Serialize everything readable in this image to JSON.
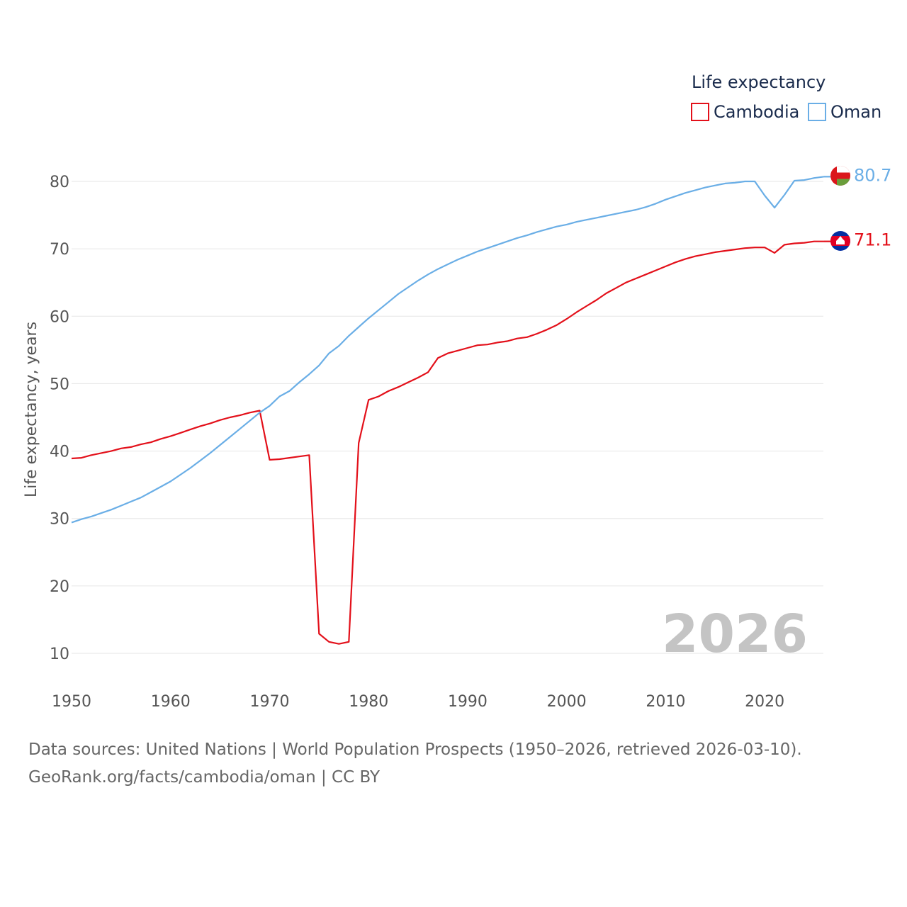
{
  "chart_data": {
    "type": "line",
    "legend_title": "Life expectancy",
    "ylabel": "Life expectancy, years",
    "xlabel": "",
    "xlim": [
      1950,
      2026
    ],
    "ylim": [
      10,
      85
    ],
    "yticks": [
      10,
      20,
      30,
      40,
      50,
      60,
      70,
      80
    ],
    "xticks": [
      1950,
      1960,
      1970,
      1980,
      1990,
      2000,
      2010,
      2020
    ],
    "year_label": "2026",
    "x_start": 1950,
    "series": [
      {
        "name": "Cambodia",
        "color": "#e3101a",
        "end_label": "71.1",
        "values": [
          38.9,
          39.0,
          39.4,
          39.7,
          40.0,
          40.4,
          40.6,
          41.0,
          41.3,
          41.8,
          42.2,
          42.7,
          43.2,
          43.7,
          44.1,
          44.6,
          45.0,
          45.3,
          45.7,
          46.0,
          38.7,
          38.8,
          39.0,
          39.2,
          39.4,
          12.9,
          11.7,
          11.4,
          11.7,
          41.2,
          47.6,
          48.1,
          48.9,
          49.5,
          50.2,
          50.9,
          51.7,
          53.8,
          54.5,
          54.9,
          55.3,
          55.7,
          55.8,
          56.1,
          56.3,
          56.7,
          56.9,
          57.4,
          58.0,
          58.7,
          59.6,
          60.6,
          61.5,
          62.4,
          63.4,
          64.2,
          65.0,
          65.6,
          66.2,
          66.8,
          67.4,
          68.0,
          68.5,
          68.9,
          69.2,
          69.5,
          69.7,
          69.9,
          70.1,
          70.2,
          70.2,
          69.4,
          70.6,
          70.8,
          70.9,
          71.1,
          71.1
        ]
      },
      {
        "name": "Oman",
        "color": "#6aaee6",
        "end_label": "80.7",
        "values": [
          29.4,
          29.9,
          30.3,
          30.8,
          31.3,
          31.9,
          32.5,
          33.1,
          33.9,
          34.7,
          35.5,
          36.5,
          37.5,
          38.6,
          39.7,
          40.9,
          42.1,
          43.3,
          44.5,
          45.7,
          46.7,
          48.1,
          48.9,
          50.2,
          51.4,
          52.7,
          54.5,
          55.6,
          57.1,
          58.4,
          59.7,
          60.9,
          62.1,
          63.3,
          64.3,
          65.3,
          66.2,
          67.0,
          67.7,
          68.4,
          69.0,
          69.6,
          70.1,
          70.6,
          71.1,
          71.6,
          72.0,
          72.5,
          72.9,
          73.3,
          73.6,
          74.0,
          74.3,
          74.6,
          74.9,
          75.2,
          75.5,
          75.8,
          76.2,
          76.7,
          77.3,
          77.8,
          78.3,
          78.7,
          79.1,
          79.4,
          79.7,
          79.8,
          80.0,
          80.0,
          77.9,
          76.1,
          78.0,
          80.1,
          80.2,
          80.5,
          80.7
        ]
      }
    ]
  },
  "source": {
    "line1": "Data sources: United Nations | World Population Prospects (1950–2026, retrieved 2026-03-10).",
    "line2": "GeoRank.org/facts/cambodia/oman | CC BY"
  }
}
